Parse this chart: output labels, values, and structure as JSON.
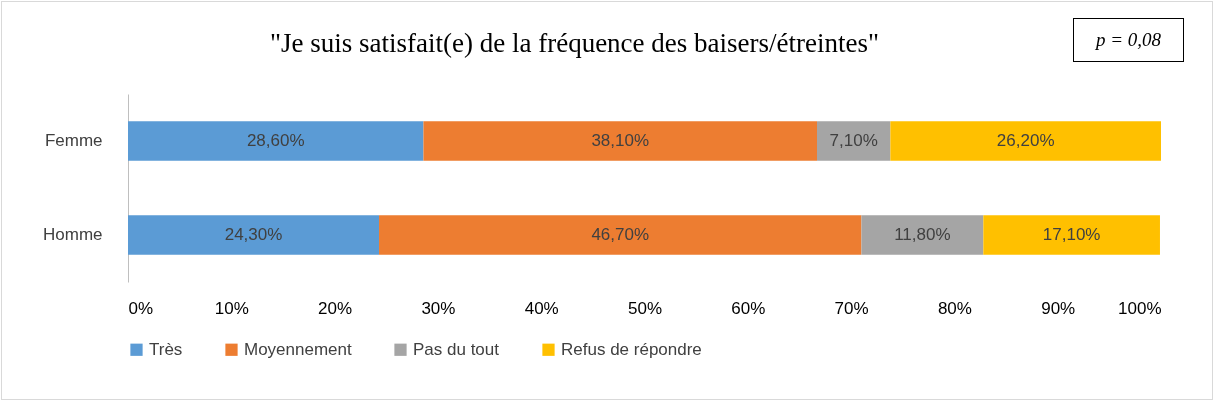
{
  "chart_data": {
    "type": "bar",
    "orientation": "horizontal",
    "stacked": true,
    "title": "\"Je suis satisfait(e) de la fréquence des baisers/étreintes\"",
    "annotations": [
      "p = 0,08"
    ],
    "categories": [
      "Femme",
      "Homme"
    ],
    "series": [
      {
        "name": "Très",
        "color": "#5b9bd5",
        "values": [
          28.6,
          24.3
        ],
        "value_labels": [
          "28,60%",
          "24,30%"
        ]
      },
      {
        "name": "Moyennement",
        "color": "#ed7d31",
        "values": [
          38.1,
          46.7
        ],
        "value_labels": [
          "38,10%",
          "46,70%"
        ]
      },
      {
        "name": "Pas du tout",
        "color": "#a5a5a5",
        "values": [
          7.1,
          11.8
        ],
        "value_labels": [
          "7,10%",
          "11,80%"
        ]
      },
      {
        "name": "Refus de répondre",
        "color": "#ffc000",
        "values": [
          26.2,
          17.1
        ],
        "value_labels": [
          "26,20%",
          "17,10%"
        ]
      }
    ],
    "xlim": [
      0,
      100
    ],
    "xticks": [
      {
        "value": 0,
        "label": "0%"
      },
      {
        "value": 10,
        "label": "10%"
      },
      {
        "value": 20,
        "label": "20%"
      },
      {
        "value": 30,
        "label": "30%"
      },
      {
        "value": 40,
        "label": "40%"
      },
      {
        "value": 50,
        "label": "50%"
      },
      {
        "value": 60,
        "label": "60%"
      },
      {
        "value": 70,
        "label": "70%"
      },
      {
        "value": 80,
        "label": "80%"
      },
      {
        "value": 90,
        "label": "90%"
      },
      {
        "value": 100,
        "label": "100%"
      }
    ],
    "grid": false,
    "legend": "bottom"
  }
}
